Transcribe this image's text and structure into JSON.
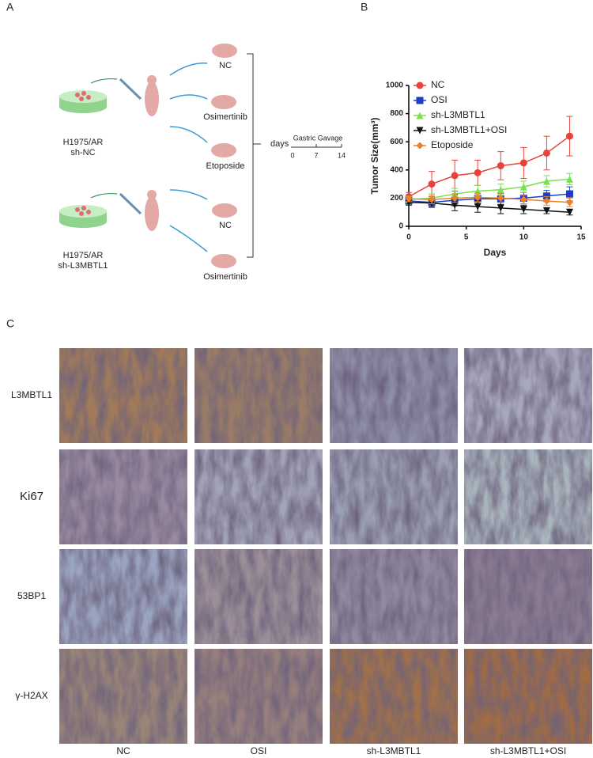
{
  "panel_labels": [
    "A",
    "B",
    "C"
  ],
  "diagram": {
    "groups": [
      [
        "H1975/AR",
        "sh-NC"
      ],
      [
        "H1975/AR",
        "sh-L3MBTL1"
      ]
    ],
    "treatments": [
      "NC",
      "Osimertinib",
      "Etoposide",
      "NC",
      "Osimertinib"
    ],
    "timeline_label": "days",
    "timeline_title": "Gastric Gavage",
    "timeline_ticks": [
      "0",
      "7",
      "14"
    ]
  },
  "chart_data": {
    "type": "line",
    "x_label": "Days",
    "y_label": "Tumor Size(mm³)",
    "x": [
      0,
      2,
      4,
      6,
      8,
      10,
      12,
      14
    ],
    "xlim": [
      0,
      15
    ],
    "xticks": [
      0,
      5,
      10,
      15
    ],
    "ylim": [
      0,
      1000
    ],
    "yticks": [
      0,
      200,
      400,
      600,
      800,
      1000
    ],
    "legend": "top-left",
    "series": [
      {
        "name": "NC",
        "color": "#e8423a",
        "marker": "circle",
        "values": [
          210,
          300,
          360,
          380,
          430,
          450,
          520,
          640
        ],
        "errors": [
          30,
          90,
          110,
          90,
          100,
          110,
          120,
          140
        ]
      },
      {
        "name": "OSI",
        "color": "#1b3fc2",
        "marker": "square",
        "values": [
          180,
          170,
          185,
          195,
          195,
          200,
          215,
          230
        ],
        "errors": [
          20,
          30,
          40,
          40,
          40,
          40,
          40,
          50
        ]
      },
      {
        "name": "sh-L3MBTL1",
        "color": "#7be04c",
        "marker": "triangle-up",
        "values": [
          190,
          200,
          230,
          250,
          260,
          280,
          320,
          335
        ],
        "errors": [
          20,
          30,
          40,
          40,
          40,
          40,
          40,
          40
        ]
      },
      {
        "name": "sh-L3MBTL1+OSI",
        "color": "#111111",
        "marker": "triangle-down",
        "values": [
          170,
          165,
          150,
          140,
          130,
          120,
          110,
          100
        ],
        "errors": [
          20,
          30,
          40,
          40,
          40,
          30,
          20,
          20
        ]
      },
      {
        "name": "Etoposide",
        "color": "#f07f2a",
        "marker": "diamond",
        "values": [
          195,
          190,
          200,
          205,
          200,
          190,
          180,
          170
        ],
        "errors": [
          20,
          30,
          30,
          30,
          30,
          30,
          30,
          30
        ]
      }
    ]
  },
  "ihc": {
    "rows": [
      "L3MBTL1",
      "Ki67",
      "53BP1",
      "γ-H2AX"
    ],
    "columns": [
      "NC",
      "OSI",
      "sh-L3MBTL1",
      "sh-L3MBTL1+OSI"
    ]
  }
}
